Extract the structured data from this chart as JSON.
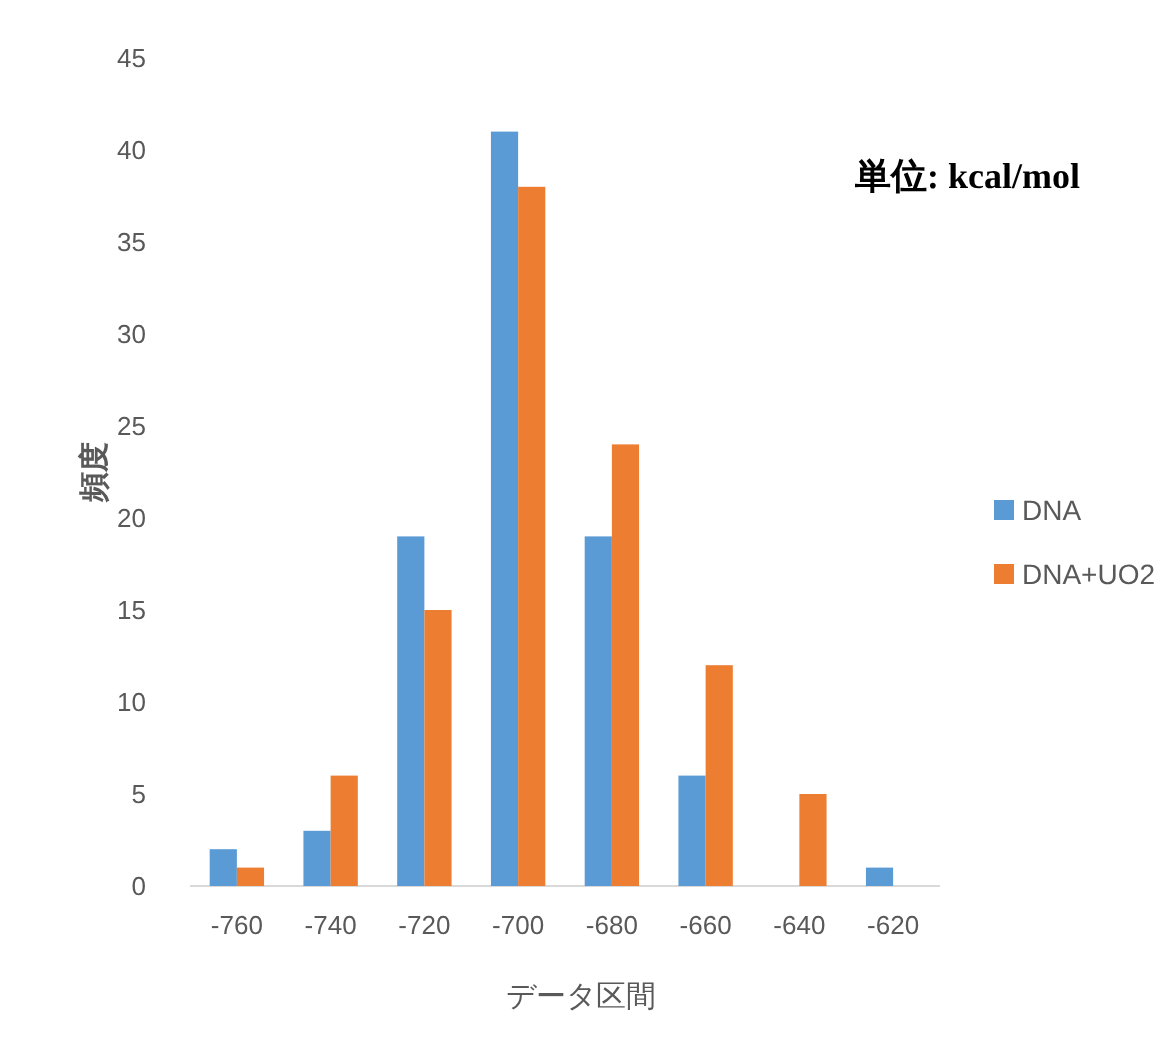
{
  "chart_data": {
    "type": "bar",
    "xlabel": "データ区間",
    "ylabel": "頻度",
    "annotations": [
      "単位: kcal/mol"
    ],
    "categories": [
      "-760",
      "-740",
      "-720",
      "-700",
      "-680",
      "-660",
      "-640",
      "-620"
    ],
    "series": [
      {
        "name": "DNA",
        "color": "#5b9bd5",
        "values": [
          2,
          3,
          19,
          41,
          19,
          6,
          0,
          1
        ]
      },
      {
        "name": "DNA+UO2",
        "color": "#ed7d31",
        "values": [
          1,
          6,
          15,
          38,
          24,
          12,
          5,
          0
        ]
      }
    ],
    "ylim": [
      0,
      45
    ],
    "yticks": [
      0,
      5,
      10,
      15,
      20,
      25,
      30,
      35,
      40,
      45
    ],
    "grid": false,
    "legend": "right"
  }
}
